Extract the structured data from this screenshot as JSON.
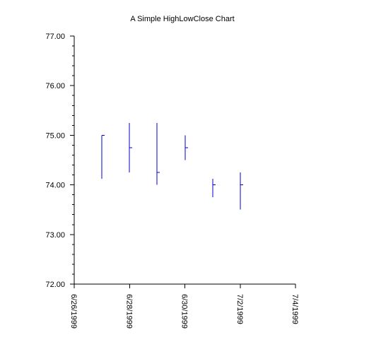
{
  "chart_data": {
    "type": "hlc",
    "title": "A Simple HighLowClose Chart",
    "xlabel": "",
    "ylabel": "",
    "x_ticks": [
      "6/26/1999",
      "6/28/1999",
      "6/30/1999",
      "7/2/1999",
      "7/4/1999"
    ],
    "xlim": [
      "1999-06-26",
      "1999-07-04"
    ],
    "ylim": [
      72.0,
      77.0
    ],
    "y_ticks": [
      "72.00",
      "73.00",
      "74.00",
      "75.00",
      "76.00",
      "77.00"
    ],
    "grid": false,
    "series": [
      {
        "color": "#0000cc",
        "points": [
          {
            "date": "1999-06-27",
            "high": 75.0,
            "low": 74.12,
            "close": 75.0
          },
          {
            "date": "1999-06-28",
            "high": 75.25,
            "low": 74.25,
            "close": 74.75
          },
          {
            "date": "1999-06-29",
            "high": 75.25,
            "low": 74.0,
            "close": 74.25
          },
          {
            "date": "1999-06-30",
            "high": 75.0,
            "low": 74.5,
            "close": 74.75
          },
          {
            "date": "1999-07-01",
            "high": 74.12,
            "low": 73.75,
            "close": 74.0
          },
          {
            "date": "1999-07-02",
            "high": 74.25,
            "low": 73.5,
            "close": 74.0
          }
        ]
      }
    ]
  }
}
